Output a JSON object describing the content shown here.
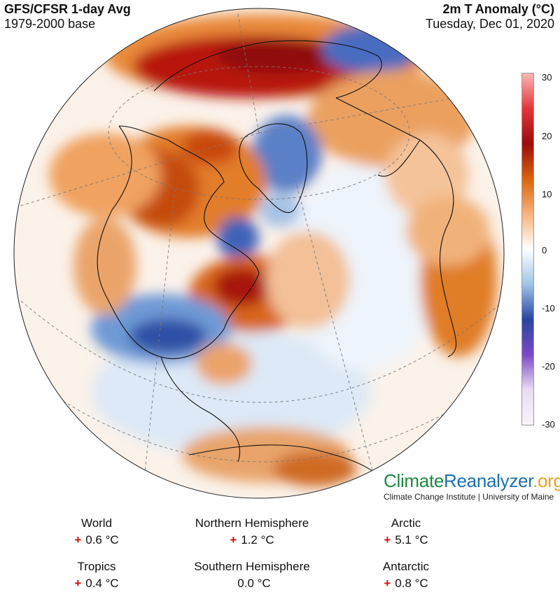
{
  "header": {
    "left_title": "GFS/CFSR 1-day Avg",
    "left_subtitle": "1979-2000 base",
    "right_title": "2m T Anomaly (°C)",
    "right_subtitle": "Tuesday, Dec 01, 2020"
  },
  "colorbar": {
    "ticks": [
      "30",
      "20",
      "10",
      "0",
      "-10",
      "-20",
      "-30"
    ],
    "values": [
      30,
      20,
      10,
      0,
      -10,
      -20,
      -30
    ],
    "colors": [
      "#f8b8b4",
      "#e5363a",
      "#9c0a0a",
      "#d8650e",
      "#f6b37d",
      "#ffffff",
      "#9fc4e8",
      "#2846a0",
      "#7a49c8",
      "#e9dcf3",
      "#f7f4fa"
    ]
  },
  "branding": {
    "logo_part1": "Climate",
    "logo_part2": "Reanalyzer",
    "logo_part3": ".org",
    "tagline": "Climate Change Institute | University of Maine"
  },
  "stats": [
    {
      "label": "World",
      "sign": "+",
      "value": "0.6 °C"
    },
    {
      "label": "Northern Hemisphere",
      "sign": "+",
      "value": "1.2 °C"
    },
    {
      "label": "Arctic",
      "sign": "+",
      "value": "5.1 °C"
    },
    {
      "label": "Tropics",
      "sign": "+",
      "value": "0.4 °C"
    },
    {
      "label": "Southern Hemisphere",
      "sign": "",
      "value": "0.0 °C"
    },
    {
      "label": "Antarctic",
      "sign": "+",
      "value": "0.8 °C"
    }
  ],
  "map_colors": {
    "ocean_base": "#fbf2ea",
    "warm_light": "#f9d2b0",
    "warm": "#e98a3a",
    "warm_dark": "#c75a12",
    "hot": "#b8160f",
    "hot_dark": "#8f0a08",
    "cool_light": "#cfe2f5",
    "cool": "#6d9bd6",
    "cold": "#2f4fa6"
  }
}
